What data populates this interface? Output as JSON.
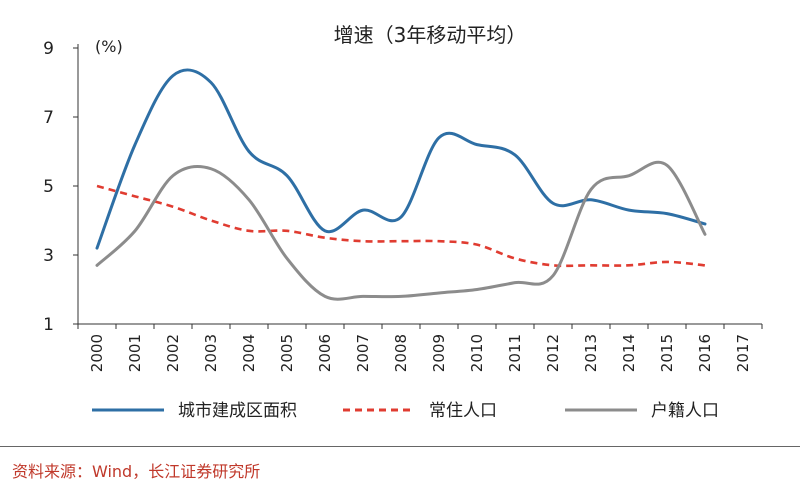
{
  "chart_data": {
    "type": "line",
    "title": "增速（3年移动平均）",
    "unit": "(%)",
    "ylim": [
      1,
      9
    ],
    "yticks": [
      "1",
      "3",
      "5",
      "7",
      "9"
    ],
    "x": [
      "2000",
      "2001",
      "2002",
      "2003",
      "2004",
      "2005",
      "2006",
      "2007",
      "2008",
      "2009",
      "2010",
      "2011",
      "2012",
      "2013",
      "2014",
      "2015",
      "2016",
      "2017"
    ],
    "series": [
      {
        "name": "城市建成区面积",
        "color": "#2e6fa5",
        "dash": "solid",
        "values": [
          3.2,
          6.2,
          8.2,
          8.0,
          6.0,
          5.3,
          3.7,
          4.3,
          4.1,
          6.4,
          6.2,
          5.9,
          4.5,
          4.6,
          4.3,
          4.2,
          3.9,
          null
        ]
      },
      {
        "name": "常住人口",
        "color": "#e03c31",
        "dash": "dashed",
        "values": [
          5.0,
          4.7,
          4.4,
          4.0,
          3.7,
          3.7,
          3.5,
          3.4,
          3.4,
          3.4,
          3.3,
          2.9,
          2.7,
          2.7,
          2.7,
          2.8,
          2.7,
          null
        ]
      },
      {
        "name": "户籍人口",
        "color": "#8c8c8c",
        "dash": "solid",
        "values": [
          2.7,
          3.7,
          5.3,
          5.5,
          4.6,
          2.9,
          1.8,
          1.8,
          1.8,
          1.9,
          2.0,
          2.2,
          2.4,
          4.9,
          5.3,
          5.6,
          3.6,
          null
        ]
      }
    ],
    "legend_position": "bottom"
  },
  "source": "资料来源：Wind，长江证券研究所"
}
